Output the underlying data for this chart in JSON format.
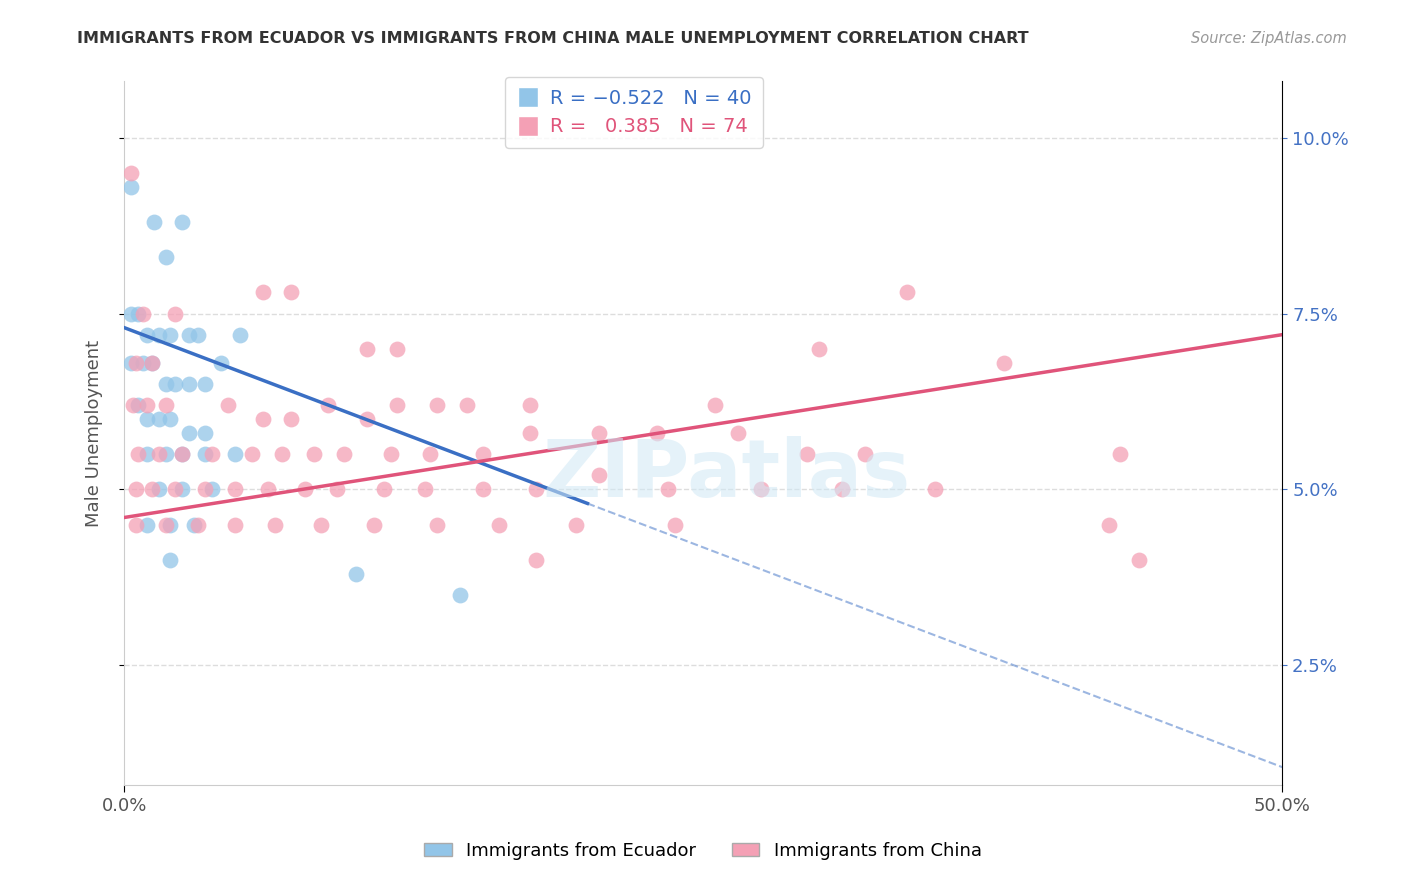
{
  "title": "IMMIGRANTS FROM ECUADOR VS IMMIGRANTS FROM CHINA MALE UNEMPLOYMENT CORRELATION CHART",
  "source": "Source: ZipAtlas.com",
  "ylabel": "Male Unemployment",
  "y_ticks": [
    0.025,
    0.05,
    0.075,
    0.1
  ],
  "y_tick_labels": [
    "2.5%",
    "5.0%",
    "7.5%",
    "10.0%"
  ],
  "x_min": 0.0,
  "x_max": 0.5,
  "y_min": 0.008,
  "y_max": 0.108,
  "color_ecuador": "#92C5E8",
  "color_china": "#F4A0B5",
  "color_line_ecuador": "#3A6FC4",
  "color_line_china": "#E0547A",
  "color_line_ecuador_label": "#4472C4",
  "color_line_china_label": "#4472C4",
  "ecuador_line_start_y": 0.073,
  "ecuador_line_end_x": 0.2,
  "ecuador_line_end_y": 0.048,
  "china_line_start_y": 0.046,
  "china_line_end_y": 0.072,
  "ecuador_points": [
    [
      0.003,
      0.093
    ],
    [
      0.013,
      0.088
    ],
    [
      0.018,
      0.083
    ],
    [
      0.025,
      0.088
    ],
    [
      0.003,
      0.075
    ],
    [
      0.006,
      0.075
    ],
    [
      0.01,
      0.072
    ],
    [
      0.015,
      0.072
    ],
    [
      0.02,
      0.072
    ],
    [
      0.028,
      0.072
    ],
    [
      0.032,
      0.072
    ],
    [
      0.05,
      0.072
    ],
    [
      0.003,
      0.068
    ],
    [
      0.008,
      0.068
    ],
    [
      0.012,
      0.068
    ],
    [
      0.018,
      0.065
    ],
    [
      0.022,
      0.065
    ],
    [
      0.028,
      0.065
    ],
    [
      0.035,
      0.065
    ],
    [
      0.042,
      0.068
    ],
    [
      0.006,
      0.062
    ],
    [
      0.01,
      0.06
    ],
    [
      0.015,
      0.06
    ],
    [
      0.02,
      0.06
    ],
    [
      0.028,
      0.058
    ],
    [
      0.035,
      0.058
    ],
    [
      0.01,
      0.055
    ],
    [
      0.018,
      0.055
    ],
    [
      0.025,
      0.055
    ],
    [
      0.035,
      0.055
    ],
    [
      0.048,
      0.055
    ],
    [
      0.015,
      0.05
    ],
    [
      0.025,
      0.05
    ],
    [
      0.038,
      0.05
    ],
    [
      0.01,
      0.045
    ],
    [
      0.02,
      0.045
    ],
    [
      0.03,
      0.045
    ],
    [
      0.02,
      0.04
    ],
    [
      0.1,
      0.038
    ],
    [
      0.145,
      0.035
    ]
  ],
  "china_points": [
    [
      0.003,
      0.095
    ],
    [
      0.008,
      0.075
    ],
    [
      0.022,
      0.075
    ],
    [
      0.06,
      0.078
    ],
    [
      0.072,
      0.078
    ],
    [
      0.338,
      0.078
    ],
    [
      0.005,
      0.068
    ],
    [
      0.012,
      0.068
    ],
    [
      0.105,
      0.07
    ],
    [
      0.118,
      0.07
    ],
    [
      0.3,
      0.07
    ],
    [
      0.004,
      0.062
    ],
    [
      0.01,
      0.062
    ],
    [
      0.018,
      0.062
    ],
    [
      0.045,
      0.062
    ],
    [
      0.06,
      0.06
    ],
    [
      0.072,
      0.06
    ],
    [
      0.088,
      0.062
    ],
    [
      0.105,
      0.06
    ],
    [
      0.118,
      0.062
    ],
    [
      0.135,
      0.062
    ],
    [
      0.148,
      0.062
    ],
    [
      0.175,
      0.062
    ],
    [
      0.255,
      0.062
    ],
    [
      0.38,
      0.068
    ],
    [
      0.006,
      0.055
    ],
    [
      0.015,
      0.055
    ],
    [
      0.025,
      0.055
    ],
    [
      0.038,
      0.055
    ],
    [
      0.055,
      0.055
    ],
    [
      0.068,
      0.055
    ],
    [
      0.082,
      0.055
    ],
    [
      0.095,
      0.055
    ],
    [
      0.115,
      0.055
    ],
    [
      0.132,
      0.055
    ],
    [
      0.155,
      0.055
    ],
    [
      0.175,
      0.058
    ],
    [
      0.205,
      0.058
    ],
    [
      0.23,
      0.058
    ],
    [
      0.265,
      0.058
    ],
    [
      0.295,
      0.055
    ],
    [
      0.32,
      0.055
    ],
    [
      0.43,
      0.055
    ],
    [
      0.005,
      0.05
    ],
    [
      0.012,
      0.05
    ],
    [
      0.022,
      0.05
    ],
    [
      0.035,
      0.05
    ],
    [
      0.048,
      0.05
    ],
    [
      0.062,
      0.05
    ],
    [
      0.078,
      0.05
    ],
    [
      0.092,
      0.05
    ],
    [
      0.112,
      0.05
    ],
    [
      0.13,
      0.05
    ],
    [
      0.155,
      0.05
    ],
    [
      0.178,
      0.05
    ],
    [
      0.205,
      0.052
    ],
    [
      0.235,
      0.05
    ],
    [
      0.275,
      0.05
    ],
    [
      0.31,
      0.05
    ],
    [
      0.35,
      0.05
    ],
    [
      0.005,
      0.045
    ],
    [
      0.018,
      0.045
    ],
    [
      0.032,
      0.045
    ],
    [
      0.048,
      0.045
    ],
    [
      0.065,
      0.045
    ],
    [
      0.085,
      0.045
    ],
    [
      0.108,
      0.045
    ],
    [
      0.135,
      0.045
    ],
    [
      0.162,
      0.045
    ],
    [
      0.195,
      0.045
    ],
    [
      0.238,
      0.045
    ],
    [
      0.425,
      0.045
    ],
    [
      0.178,
      0.04
    ],
    [
      0.438,
      0.04
    ]
  ]
}
